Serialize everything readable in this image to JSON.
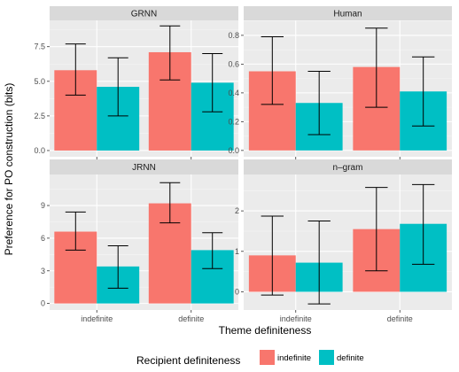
{
  "chart_data": {
    "type": "bar",
    "xlabel": "Theme definiteness",
    "ylabel": "Preference for PO construction (bits)",
    "categories": [
      "indefinite",
      "definite"
    ],
    "legend": {
      "title": "Recipient definiteness",
      "placement": "bottom",
      "entries": [
        {
          "name": "indefinite",
          "color": "#F8766D"
        },
        {
          "name": "definite",
          "color": "#00BFC4"
        }
      ]
    },
    "panels": [
      {
        "title": "GRNN",
        "ylim": [
          -0.45,
          9.4
        ],
        "yticks": [
          0,
          2.5,
          5,
          7.5
        ],
        "ytick_labels": [
          "0.0",
          "2.5",
          "5.0",
          "7.5"
        ],
        "series": [
          {
            "name": "indefinite",
            "values": [
              5.8,
              7.1
            ],
            "err_low": [
              4.0,
              5.1
            ],
            "err_high": [
              7.7,
              9.0
            ]
          },
          {
            "name": "definite",
            "values": [
              4.6,
              4.9
            ],
            "err_low": [
              2.5,
              2.8
            ],
            "err_high": [
              6.7,
              7.0
            ]
          }
        ]
      },
      {
        "title": "Human",
        "ylim": [
          -0.044,
          0.904
        ],
        "yticks": [
          0,
          0.2,
          0.4,
          0.6,
          0.8
        ],
        "ytick_labels": [
          "0.0",
          "0.2",
          "0.4",
          "0.6",
          "0.8"
        ],
        "series": [
          {
            "name": "indefinite",
            "values": [
              0.55,
              0.58
            ],
            "err_low": [
              0.32,
              0.3
            ],
            "err_high": [
              0.79,
              0.85
            ]
          },
          {
            "name": "definite",
            "values": [
              0.33,
              0.41
            ],
            "err_low": [
              0.11,
              0.17
            ],
            "err_high": [
              0.55,
              0.65
            ]
          }
        ]
      },
      {
        "title": "JRNN",
        "ylim": [
          -0.6,
          11.85
        ],
        "yticks": [
          0,
          3,
          6,
          9
        ],
        "ytick_labels": [
          "0",
          "3",
          "6",
          "9"
        ],
        "series": [
          {
            "name": "indefinite",
            "values": [
              6.6,
              9.2
            ],
            "err_low": [
              4.9,
              7.4
            ],
            "err_high": [
              8.4,
              11.1
            ]
          },
          {
            "name": "definite",
            "values": [
              3.4,
              4.9
            ],
            "err_low": [
              1.4,
              3.2
            ],
            "err_high": [
              5.3,
              6.5
            ]
          }
        ]
      },
      {
        "title": "n–gram",
        "ylim": [
          -0.45,
          2.9
        ],
        "yticks": [
          0,
          1,
          2
        ],
        "ytick_labels": [
          "0",
          "1",
          "2"
        ],
        "series": [
          {
            "name": "indefinite",
            "values": [
              0.9,
              1.55
            ],
            "err_low": [
              -0.08,
              0.52
            ],
            "err_high": [
              1.87,
              2.58
            ]
          },
          {
            "name": "definite",
            "values": [
              0.72,
              1.68
            ],
            "err_low": [
              -0.3,
              0.68
            ],
            "err_high": [
              1.75,
              2.65
            ]
          }
        ]
      }
    ],
    "grid": true
  }
}
